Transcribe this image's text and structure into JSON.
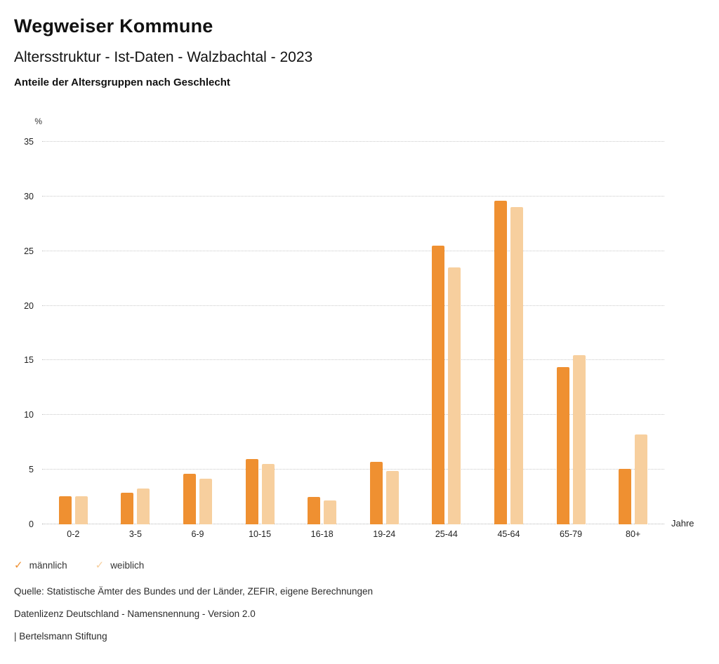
{
  "header": {
    "title": "Wegweiser Kommune",
    "subtitle": "Altersstruktur - Ist-Daten - Walzbachtal - 2023",
    "chart_heading": "Anteile der Altersgruppen nach Geschlecht"
  },
  "chart_data": {
    "type": "bar",
    "title": "Anteile der Altersgruppen nach Geschlecht",
    "categories": [
      "0-2",
      "3-5",
      "6-9",
      "10-15",
      "16-18",
      "19-24",
      "25-44",
      "45-64",
      "65-79",
      "80+"
    ],
    "series": [
      {
        "name": "männlich",
        "color": "#ef9031",
        "values": [
          2.6,
          2.9,
          4.6,
          6.0,
          2.5,
          5.7,
          25.5,
          29.6,
          14.4,
          5.1
        ]
      },
      {
        "name": "weiblich",
        "color": "#f7cf9e",
        "values": [
          2.6,
          3.3,
          4.2,
          5.5,
          2.2,
          4.9,
          23.5,
          29.0,
          15.5,
          8.2
        ]
      }
    ],
    "ylabel": "%",
    "xlabel": "Jahre",
    "ylim": [
      0,
      35
    ],
    "yticks": [
      0,
      5,
      10,
      15,
      20,
      25,
      30,
      35
    ],
    "grid": true,
    "legend_position": "bottom"
  },
  "legend": {
    "check_glyph": "✓"
  },
  "footer": {
    "source": "Quelle: Statistische Ämter des Bundes und der Länder, ZEFIR, eigene Berechnungen",
    "license": "Datenlizenz Deutschland - Namensnennung - Version 2.0",
    "attribution": "| Bertelsmann Stiftung"
  }
}
